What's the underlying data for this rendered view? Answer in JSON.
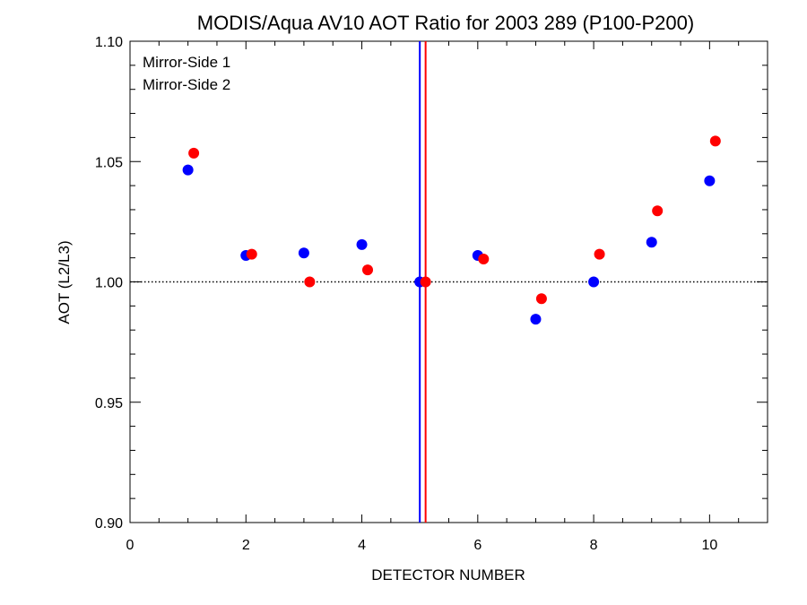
{
  "chart_data": {
    "type": "scatter",
    "title": "MODIS/Aqua AV10 AOT Ratio for 2003 289 (P100-P200)",
    "xlabel": "DETECTOR NUMBER",
    "ylabel": "AOT (L2/L3)",
    "xlim": [
      0,
      11
    ],
    "ylim": [
      0.9,
      1.1
    ],
    "xticks": [
      0,
      2,
      4,
      6,
      8,
      10
    ],
    "xtick_labels": [
      "0",
      "2",
      "4",
      "6",
      "8",
      "10"
    ],
    "yticks": [
      0.9,
      0.95,
      1.0,
      1.05,
      1.1
    ],
    "ytick_labels": [
      "0.90",
      "0.95",
      "1.00",
      "1.05",
      "1.10"
    ],
    "x_minor_step": 0.5,
    "y_minor_step": 0.01,
    "grid": false,
    "legend_position": "top-left",
    "reference_line": {
      "y": 1.0,
      "style": "dotted",
      "color": "#000000"
    },
    "vertical_lines": [
      {
        "x": 5.0,
        "color": "#0000ff"
      },
      {
        "x": 5.1,
        "color": "#ff0000"
      }
    ],
    "series": [
      {
        "name": "Mirror-Side 1",
        "color": "#0000ff",
        "x": [
          1,
          2,
          3,
          4,
          5,
          6,
          7,
          8,
          9,
          10
        ],
        "y": [
          1.0465,
          1.011,
          1.012,
          1.0155,
          1.0,
          1.011,
          0.9845,
          1.0,
          1.0165,
          1.042
        ]
      },
      {
        "name": "Mirror-Side 2",
        "color": "#ff0000",
        "x": [
          1.1,
          2.1,
          3.1,
          4.1,
          5.1,
          6.1,
          7.1,
          8.1,
          9.1,
          10.1
        ],
        "y": [
          1.0535,
          1.0115,
          1.0,
          1.005,
          1.0,
          1.0095,
          0.993,
          1.0115,
          1.0295,
          1.0585
        ]
      }
    ]
  }
}
